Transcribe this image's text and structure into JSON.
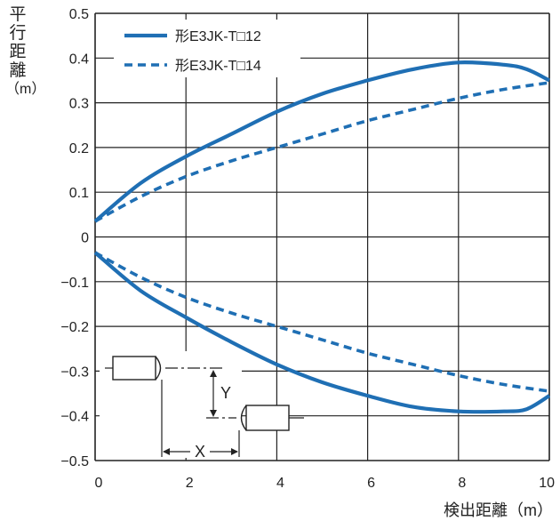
{
  "chart_data": {
    "type": "line",
    "xlabel": "検出距離（m）",
    "ylabel": [
      "平",
      "行",
      "距",
      "離",
      "（m）"
    ],
    "xlim": [
      0,
      10
    ],
    "ylim": [
      -0.5,
      0.5
    ],
    "x_ticks": [
      "0",
      "2",
      "4",
      "6",
      "8",
      "10"
    ],
    "y_ticks": [
      "0.5",
      "0.4",
      "0.3",
      "0.2",
      "0.1",
      "0",
      "−0.1",
      "−0.2",
      "−0.3",
      "−0.4",
      "−0.5"
    ],
    "grid": true,
    "legend": "top-left",
    "series": [
      {
        "name": "形E3JK-T□12",
        "style": "solid",
        "color": "#1f6fb4",
        "x": [
          0,
          1,
          2,
          3,
          4,
          5,
          6,
          7,
          8,
          9,
          9.5,
          10
        ],
        "y_upper": [
          0.035,
          0.12,
          0.18,
          0.23,
          0.28,
          0.32,
          0.35,
          0.375,
          0.39,
          0.385,
          0.375,
          0.35
        ],
        "y_lower": [
          -0.035,
          -0.12,
          -0.18,
          -0.235,
          -0.285,
          -0.325,
          -0.355,
          -0.38,
          -0.39,
          -0.39,
          -0.385,
          -0.355
        ]
      },
      {
        "name": "形E3JK-T□14",
        "style": "dashed",
        "color": "#1f6fb4",
        "x": [
          0,
          1,
          2,
          3,
          4,
          5,
          6,
          7,
          8,
          9,
          10
        ],
        "y_upper": [
          0.035,
          0.09,
          0.135,
          0.17,
          0.2,
          0.23,
          0.26,
          0.285,
          0.31,
          0.33,
          0.345
        ],
        "y_lower": [
          -0.035,
          -0.09,
          -0.135,
          -0.17,
          -0.2,
          -0.23,
          -0.26,
          -0.285,
          -0.31,
          -0.33,
          -0.345
        ]
      }
    ],
    "annotation": {
      "x_label": "X",
      "y_label": "Y"
    }
  }
}
